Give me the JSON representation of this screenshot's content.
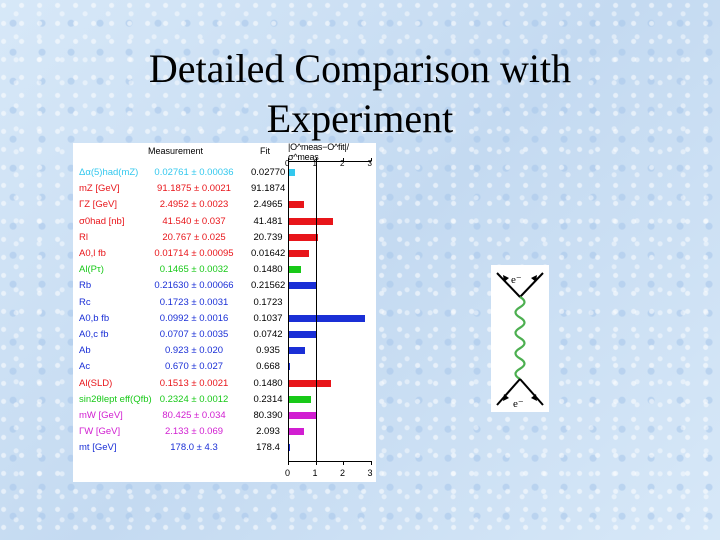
{
  "slide": {
    "title": "Detailed Comparison with Experiment"
  },
  "figure": {
    "header_measurement": "Measurement",
    "header_fit": "Fit",
    "header_pull": "|O^meas−O^fit|/σ^meas",
    "axis_ticks": [
      "0",
      "1",
      "2",
      "3"
    ],
    "rows": [
      {
        "label": "Δα(5)had(mZ)",
        "measurement": "0.02761 ± 0.00036",
        "fit": "0.02770",
        "pull": 0.25,
        "color": "#33c8ee"
      },
      {
        "label": "mZ [GeV]",
        "measurement": "91.1875 ± 0.0021",
        "fit": "91.1874",
        "pull": 0.05,
        "color": "#e8151a"
      },
      {
        "label": "ΓZ [GeV]",
        "measurement": "2.4952 ± 0.0023",
        "fit": "2.4965",
        "pull": 0.57,
        "color": "#e8151a"
      },
      {
        "label": "σ0had [nb]",
        "measurement": "41.540 ± 0.037",
        "fit": "41.481",
        "pull": 1.62,
        "color": "#e8151a"
      },
      {
        "label": "Rl",
        "measurement": "20.767 ± 0.025",
        "fit": "20.739",
        "pull": 1.1,
        "color": "#e8151a"
      },
      {
        "label": "A0,l fb",
        "measurement": "0.01714 ± 0.00095",
        "fit": "0.01642",
        "pull": 0.76,
        "color": "#e8151a"
      },
      {
        "label": "Al(Pτ)",
        "measurement": "0.1465 ± 0.0032",
        "fit": "0.1480",
        "pull": 0.48,
        "color": "#18c918"
      },
      {
        "label": "Rb",
        "measurement": "0.21630 ± 0.00066",
        "fit": "0.21562",
        "pull": 1.03,
        "color": "#1a2fd6"
      },
      {
        "label": "Rc",
        "measurement": "0.1723 ± 0.0031",
        "fit": "0.1723",
        "pull": 0.0,
        "color": "#1a2fd6"
      },
      {
        "label": "A0,b fb",
        "measurement": "0.0992 ± 0.0016",
        "fit": "0.1037",
        "pull": 2.81,
        "color": "#1a2fd6"
      },
      {
        "label": "A0,c fb",
        "measurement": "0.0707 ± 0.0035",
        "fit": "0.0742",
        "pull": 1.0,
        "color": "#1a2fd6"
      },
      {
        "label": "Ab",
        "measurement": "0.923 ± 0.020",
        "fit": "0.935",
        "pull": 0.6,
        "color": "#1a2fd6"
      },
      {
        "label": "Ac",
        "measurement": "0.670 ± 0.027",
        "fit": "0.668",
        "pull": 0.07,
        "color": "#1a2fd6"
      },
      {
        "label": "Al(SLD)",
        "measurement": "0.1513 ± 0.0021",
        "fit": "0.1480",
        "pull": 1.57,
        "color": "#e8151a"
      },
      {
        "label": "sin2θlept eff(Qfb)",
        "measurement": "0.2324 ± 0.0012",
        "fit": "0.2314",
        "pull": 0.83,
        "color": "#18c918"
      },
      {
        "label": "mW [GeV]",
        "measurement": "80.425 ± 0.034",
        "fit": "80.390",
        "pull": 1.03,
        "color": "#d11ed1"
      },
      {
        "label": "ΓW [GeV]",
        "measurement": "2.133 ± 0.069",
        "fit": "2.093",
        "pull": 0.58,
        "color": "#d11ed1"
      },
      {
        "label": "mt [GeV]",
        "measurement": "178.0 ± 4.3",
        "fit": "178.4",
        "pull": 0.09,
        "color": "#1a2fd6"
      }
    ],
    "label_colors": [
      "#33c8ee",
      "#e8151a",
      "#e8151a",
      "#e8151a",
      "#e8151a",
      "#e8151a",
      "#18c918",
      "#1a2fd6",
      "#1a2fd6",
      "#1a2fd6",
      "#1a2fd6",
      "#1a2fd6",
      "#1a2fd6",
      "#e8151a",
      "#18c918",
      "#d11ed1",
      "#d11ed1",
      "#1a2fd6"
    ]
  },
  "feynman": {
    "top_label": "e⁻",
    "bottom_label": "e⁻",
    "line_color": "#000000",
    "boson_color": "#4caf50"
  }
}
